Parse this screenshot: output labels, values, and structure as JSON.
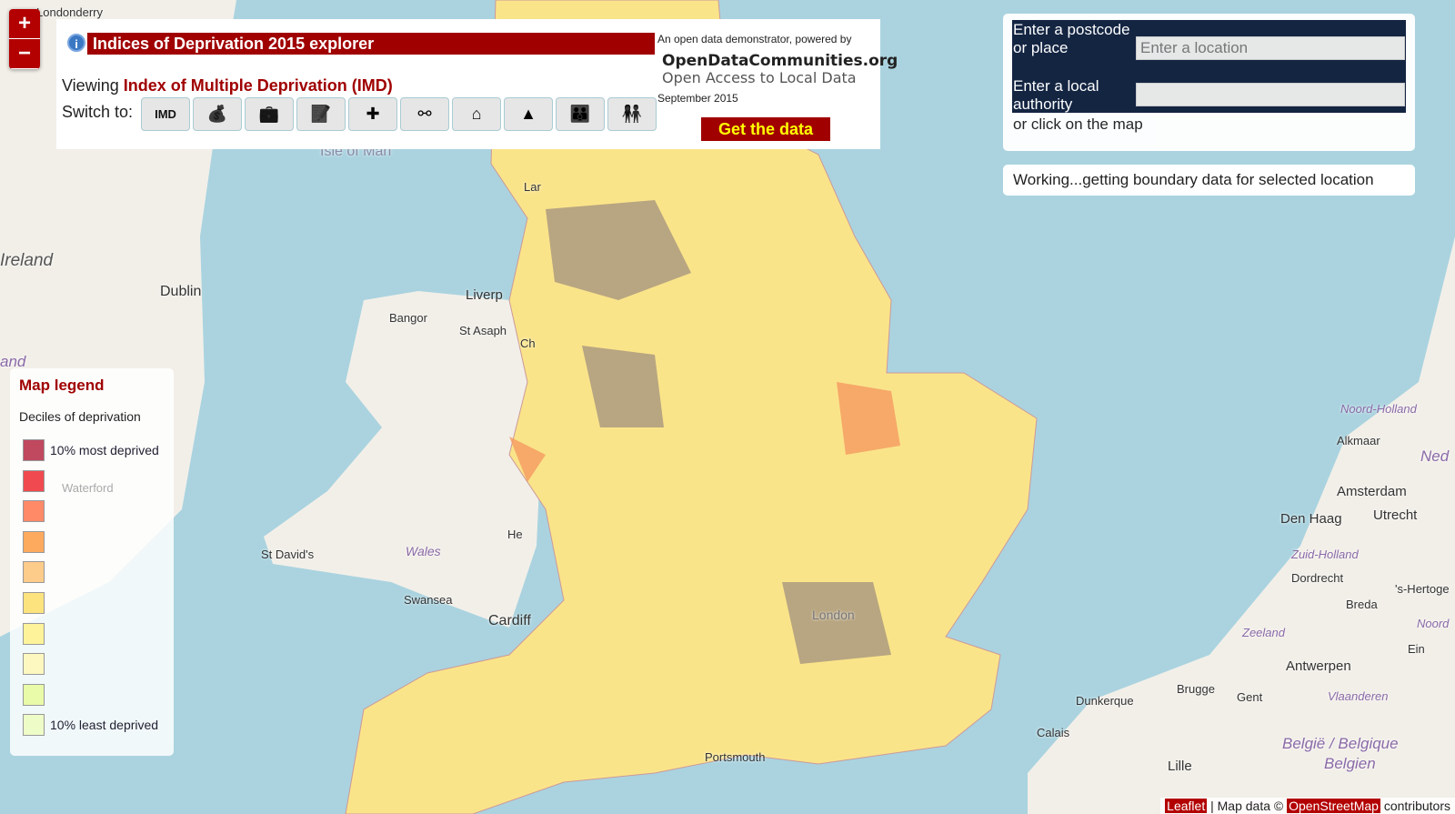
{
  "zoom": {
    "in": "+",
    "out": "−"
  },
  "header": {
    "title": "Indices of Deprivation 2015 explorer",
    "viewing_prefix": "Viewing",
    "viewing_value": "Index of Multiple Deprivation (IMD)",
    "switch_label": "Switch to:",
    "powered_by": "An open data demonstrator, powered by",
    "odc": "OpenDataCommunities.org",
    "odc_tagline": "Open Access to Local Data",
    "date": "September 2015",
    "get_data": "Get the data"
  },
  "switch_buttons": [
    {
      "name": "imd",
      "label": "IMD",
      "icon": "text"
    },
    {
      "name": "income",
      "icon": "money-bag-icon",
      "glyph": "💰"
    },
    {
      "name": "employment",
      "icon": "briefcase-icon",
      "glyph": "💼"
    },
    {
      "name": "education",
      "icon": "notebook-pencil-icon",
      "glyph": "📝"
    },
    {
      "name": "health",
      "icon": "cross-icon",
      "glyph": "✚"
    },
    {
      "name": "crime",
      "icon": "handcuffs-icon",
      "glyph": "⚯"
    },
    {
      "name": "housing",
      "icon": "house-icon",
      "glyph": "⌂"
    },
    {
      "name": "environment",
      "icon": "tree-icon",
      "glyph": "▲"
    },
    {
      "name": "children",
      "icon": "family-icon",
      "glyph": "👪"
    },
    {
      "name": "older-people",
      "icon": "older-people-icon",
      "glyph": "👫"
    }
  ],
  "search": {
    "postcode_label": "Enter a postcode or place",
    "postcode_placeholder": "Enter a location",
    "la_label": "Enter a local authority",
    "la_value": "",
    "or_click": "or click on the map"
  },
  "status": "Working...getting boundary data for selected location",
  "legend": {
    "title": "Map legend",
    "subtitle": "Deciles of deprivation",
    "items": [
      {
        "color": "#c0485f",
        "label": "10% most deprived"
      },
      {
        "color": "#f04a50",
        "label": ""
      },
      {
        "color": "#fe8a68",
        "label": ""
      },
      {
        "color": "#feaa5e",
        "label": ""
      },
      {
        "color": "#fdcc8a",
        "label": ""
      },
      {
        "color": "#fde37e",
        "label": ""
      },
      {
        "color": "#fef39a",
        "label": ""
      },
      {
        "color": "#fcf8c0",
        "label": ""
      },
      {
        "color": "#e9fba8",
        "label": ""
      },
      {
        "color": "#eefcc8",
        "label": "10% least deprived"
      }
    ]
  },
  "attribution": {
    "leaflet": "Leaflet",
    "sep": "| Map data ©",
    "osm": "OpenStreetMap",
    "contributors": "contributors"
  },
  "map_labels": [
    "Londonderry",
    "Ireland",
    "Dublin",
    "Isle of Man",
    "Bangor",
    "St Asaph",
    "Liverp",
    "Wales",
    "St David's",
    "Swansea",
    "Cardiff",
    "London",
    "Portsmouth",
    "Waterford",
    "Noord-Holland",
    "Alkmaar",
    "Amsterdam",
    "Den Haag",
    "Utrecht",
    "Zuid-Holland",
    "Dordrecht",
    "Breda",
    "Zeeland",
    "Antwerpen",
    "Brugge",
    "Gent",
    "Dunkerque",
    "Calais",
    "Lille",
    "Vlaanderen",
    "België / Belgique",
    "Belgien",
    "Ned",
    "and",
    "Ch",
    "He",
    "Lar",
    "Ein",
    "'s-Hertoge",
    "Noord"
  ]
}
